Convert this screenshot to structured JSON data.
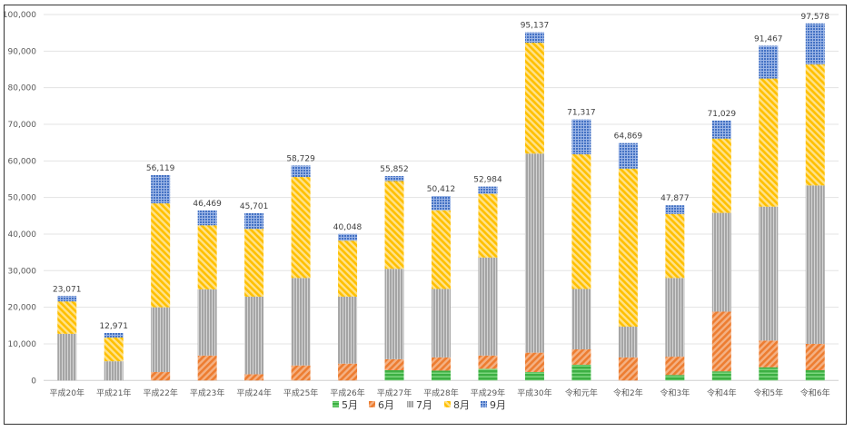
{
  "chart_data": {
    "type": "bar",
    "stacked": true,
    "title": "",
    "xlabel": "",
    "ylabel": "",
    "ylim": [
      0,
      100000
    ],
    "yticks": [
      0,
      10000,
      20000,
      30000,
      40000,
      50000,
      60000,
      70000,
      80000,
      90000,
      100000
    ],
    "ytick_labels": [
      "0",
      "10,000",
      "20,000",
      "30,000",
      "40,000",
      "50,000",
      "60,000",
      "70,000",
      "80,000",
      "90,000",
      "100,000"
    ],
    "grid": true,
    "legend_position": "bottom",
    "categories": [
      "平成20年",
      "平成21年",
      "平成22年",
      "平成23年",
      "平成24年",
      "平成25年",
      "平成26年",
      "平成27年",
      "平成28年",
      "平成29年",
      "平成30年",
      "令和元年",
      "令和2年",
      "令和3年",
      "令和4年",
      "令和5年",
      "令和6年"
    ],
    "series": [
      {
        "name": "5月",
        "color": "#3CB043",
        "pattern": "horizontal",
        "values": [
          0,
          0,
          0,
          0,
          0,
          0,
          0,
          2800,
          2700,
          3200,
          2300,
          4300,
          0,
          1500,
          2500,
          3600,
          2800
        ]
      },
      {
        "name": "6月",
        "color": "#ED7D31",
        "pattern": "diag-down",
        "values": [
          0,
          0,
          2300,
          6800,
          1700,
          4100,
          4600,
          3000,
          3600,
          3600,
          5300,
          4200,
          6300,
          5000,
          16300,
          7300,
          7200
        ]
      },
      {
        "name": "7月",
        "color": "#A5A5A5",
        "pattern": "vertical",
        "values": [
          12750,
          5250,
          17700,
          18100,
          21200,
          23900,
          18300,
          24700,
          18700,
          26800,
          54400,
          16500,
          8400,
          21500,
          27000,
          36600,
          43300
        ]
      },
      {
        "name": "8月",
        "color": "#FFC000",
        "pattern": "diag-up",
        "values": [
          8850,
          6500,
          28400,
          17500,
          18500,
          27600,
          15300,
          24000,
          21500,
          17400,
          30300,
          36800,
          43200,
          17500,
          20300,
          35000,
          33100
        ]
      },
      {
        "name": "9月",
        "color": "#4472C4",
        "pattern": "grid",
        "values": [
          1471,
          1221,
          7719,
          4069,
          4301,
          3129,
          1848,
          1352,
          3912,
          1984,
          2837,
          9517,
          6969,
          2377,
          4929,
          8967,
          11178
        ]
      }
    ],
    "totals": [
      23071,
      12971,
      56119,
      46469,
      45701,
      58729,
      40048,
      55852,
      50412,
      52984,
      95137,
      71317,
      64869,
      47877,
      71029,
      91467,
      97578
    ],
    "total_labels": [
      "23,071",
      "12,971",
      "56,119",
      "46,469",
      "45,701",
      "58,729",
      "40,048",
      "55,852",
      "50,412",
      "52,984",
      "95,137",
      "71,317",
      "64,869",
      "47,877",
      "71,029",
      "91,467",
      "97,578"
    ]
  }
}
